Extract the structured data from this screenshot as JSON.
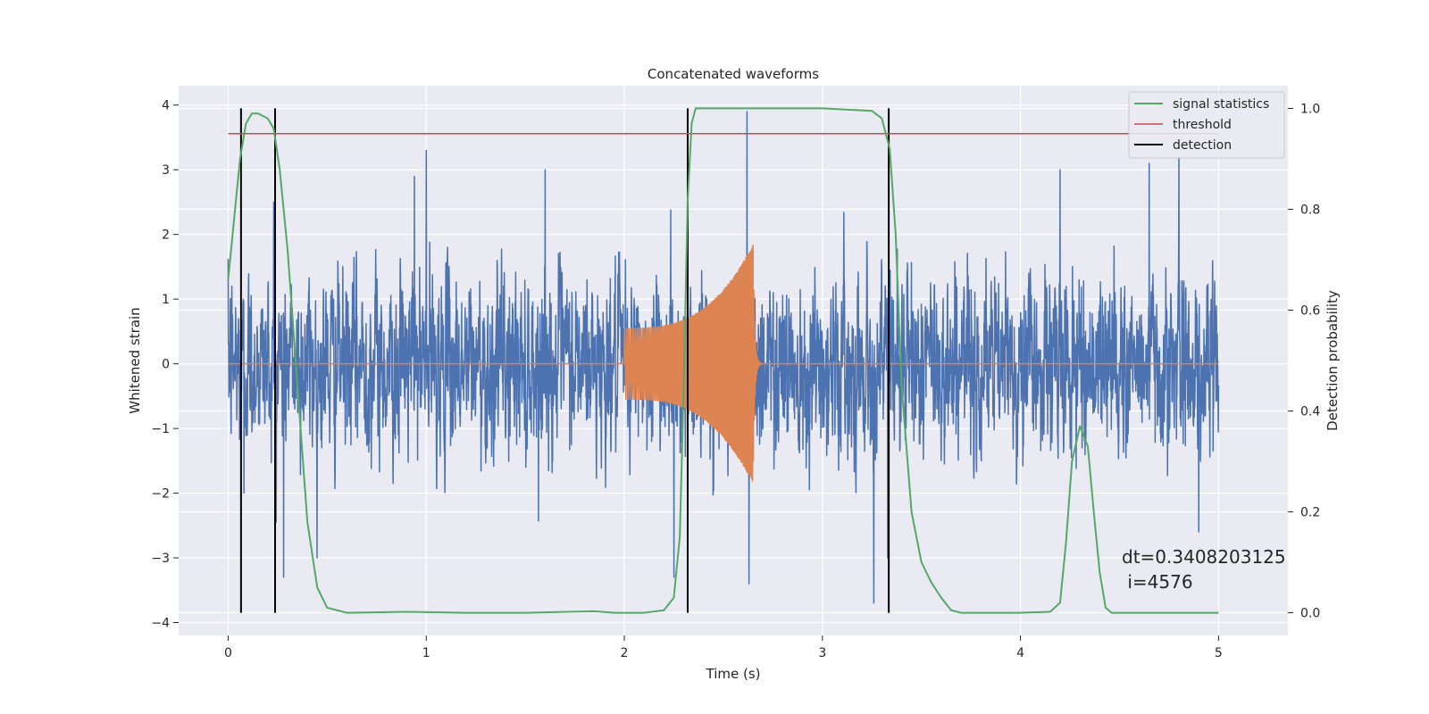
{
  "chart_data": {
    "type": "line",
    "title": "Concatenated waveforms",
    "xlabel": "Time (s)",
    "ylabel": "Whitened strain",
    "ylabel_right": "Detection probability",
    "xlim": [
      -0.25,
      5.35
    ],
    "ylim": [
      -4.2,
      4.3
    ],
    "ylim_right": [
      -0.045,
      1.045
    ],
    "xticks": [
      0,
      1,
      2,
      3,
      4,
      5
    ],
    "xtick_labels": [
      "0",
      "1",
      "2",
      "3",
      "4",
      "5"
    ],
    "yticks": [
      -4,
      -3,
      -2,
      -1,
      0,
      1,
      2,
      3,
      4
    ],
    "ytick_labels": [
      "−4",
      "−3",
      "−2",
      "−1",
      "0",
      "1",
      "2",
      "3",
      "4"
    ],
    "yticks_right": [
      0.0,
      0.2,
      0.4,
      0.6,
      0.8,
      1.0
    ],
    "ytick_labels_right": [
      "0.0",
      "0.2",
      "0.4",
      "0.6",
      "0.8",
      "1.0"
    ],
    "grid": true,
    "legend_position": "top-right",
    "colors": {
      "strain": "#4c72b0",
      "injection": "#dd8452",
      "signal_statistics": "#55a868",
      "threshold": "#c44e52",
      "detection": "#000000",
      "background": "#eaeaf2",
      "grid": "#ffffff"
    },
    "series": [
      {
        "name": "signal statistics",
        "axis": "right",
        "x": [
          0.0,
          0.03,
          0.06,
          0.09,
          0.12,
          0.15,
          0.2,
          0.23,
          0.26,
          0.3,
          0.35,
          0.4,
          0.45,
          0.5,
          0.6,
          0.9,
          1.2,
          1.5,
          1.85,
          1.95,
          2.1,
          2.2,
          2.25,
          2.28,
          2.3,
          2.32,
          2.34,
          2.36,
          2.4,
          2.6,
          3.0,
          3.25,
          3.3,
          3.34,
          3.37,
          3.4,
          3.45,
          3.5,
          3.55,
          3.6,
          3.65,
          3.7,
          4.0,
          4.15,
          4.2,
          4.23,
          4.26,
          4.3,
          4.34,
          4.37,
          4.4,
          4.43,
          4.46,
          4.5,
          4.8,
          5.0
        ],
        "y": [
          0.66,
          0.78,
          0.9,
          0.97,
          0.99,
          0.99,
          0.98,
          0.96,
          0.88,
          0.72,
          0.45,
          0.18,
          0.05,
          0.01,
          0.0,
          0.002,
          0.0,
          0.0,
          0.003,
          0.0,
          0.0,
          0.005,
          0.03,
          0.15,
          0.45,
          0.82,
          0.97,
          1.0,
          1.0,
          1.0,
          1.0,
          0.995,
          0.98,
          0.92,
          0.75,
          0.45,
          0.2,
          0.1,
          0.06,
          0.03,
          0.005,
          0.0,
          0.0,
          0.002,
          0.02,
          0.14,
          0.3,
          0.37,
          0.33,
          0.2,
          0.08,
          0.01,
          0.0,
          0.0,
          0.0,
          0.0
        ]
      },
      {
        "name": "threshold",
        "axis": "right",
        "x": [
          0.0,
          5.0
        ],
        "y": [
          0.95,
          0.95
        ]
      },
      {
        "name": "detection",
        "axis": "right",
        "type": "vlines",
        "x": [
          0.065,
          0.237,
          2.32,
          3.335
        ],
        "ymin": 0.0,
        "ymax": 1.0
      },
      {
        "axis": "left",
        "role": "whitened strain (noise)",
        "x_range": [
          0.0,
          5.0
        ],
        "sample_count": 4000,
        "std": 0.85,
        "extremes": [
          [
            0.08,
            -2.0
          ],
          [
            0.23,
            2.5
          ],
          [
            0.28,
            -3.3
          ],
          [
            0.94,
            2.9
          ],
          [
            1.0,
            3.3
          ],
          [
            1.6,
            3.0
          ],
          [
            2.25,
            -3.3
          ],
          [
            2.62,
            3.9
          ],
          [
            2.63,
            -3.4
          ],
          [
            3.26,
            -3.7
          ],
          [
            3.33,
            -3.0
          ],
          [
            4.2,
            3.0
          ],
          [
            4.65,
            3.1
          ],
          [
            4.8,
            3.2
          ],
          [
            4.9,
            -2.6
          ]
        ]
      },
      {
        "axis": "left",
        "role": "injected waveform",
        "x_range": [
          2.0,
          2.65
        ],
        "amplitude_start": 0.55,
        "amplitude_peak": 1.85,
        "frequency_start_hz": 90,
        "frequency_end_hz": 200
      }
    ],
    "annotation": {
      "line1": "dt=0.3408203125",
      "line2": " i=4576",
      "x": 4.5,
      "y": -3.0
    }
  }
}
